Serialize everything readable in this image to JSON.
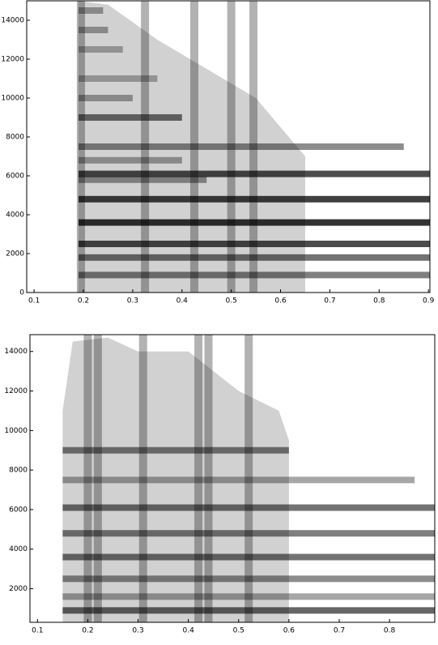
{
  "chart_data": [
    {
      "type": "spectrogram",
      "color": "#000000",
      "xlim": [
        0.085,
        0.903
      ],
      "xticks": [
        0.1,
        0.2,
        0.3,
        0.4,
        0.5,
        0.6,
        0.7,
        0.8,
        0.9
      ],
      "ylim": [
        0,
        15000
      ],
      "yticks": [
        0,
        2000,
        4000,
        6000,
        8000,
        10000,
        12000,
        14000
      ],
      "cloud": {
        "x": [
          0.19,
          0.25,
          0.35,
          0.45,
          0.55,
          0.6,
          0.65
        ],
        "top": [
          15000,
          14800,
          13000,
          11500,
          10000,
          8500,
          7000
        ]
      },
      "onsets": [
        0.195,
        0.325,
        0.425,
        0.5,
        0.545
      ],
      "harmonics": {
        "freq": [
          900,
          1800,
          2500,
          3600,
          4800,
          5800,
          6100,
          6800,
          7500,
          9000,
          10000,
          11000,
          12500,
          13500,
          14500
        ],
        "end": [
          0.903,
          0.903,
          0.903,
          0.903,
          0.903,
          0.45,
          0.903,
          0.4,
          0.85,
          0.4,
          0.3,
          0.35,
          0.28,
          0.25,
          0.24
        ],
        "intensity": [
          0.5,
          0.55,
          0.7,
          0.8,
          0.75,
          0.4,
          0.7,
          0.35,
          0.45,
          0.55,
          0.35,
          0.3,
          0.3,
          0.35,
          0.35
        ]
      }
    },
    {
      "type": "spectrogram",
      "color": "#000000",
      "xlim": [
        0.085,
        0.89
      ],
      "xticks": [
        0.1,
        0.2,
        0.3,
        0.4,
        0.5,
        0.6,
        0.7,
        0.8
      ],
      "ylim": [
        300,
        14850
      ],
      "yticks": [
        2000,
        4000,
        6000,
        8000,
        10000,
        12000,
        14000
      ],
      "cloud": {
        "x": [
          0.15,
          0.17,
          0.24,
          0.3,
          0.4,
          0.5,
          0.58,
          0.6
        ],
        "top": [
          11000,
          14500,
          14700,
          14000,
          14000,
          12000,
          11000,
          9500
        ]
      },
      "onsets": [
        0.2,
        0.22,
        0.31,
        0.42,
        0.44,
        0.52
      ],
      "harmonics": {
        "freq": [
          900,
          1600,
          2500,
          3600,
          4800,
          6100,
          7500,
          9000
        ],
        "end": [
          0.89,
          0.89,
          0.89,
          0.89,
          0.89,
          0.89,
          0.85,
          0.6
        ],
        "intensity": [
          0.6,
          0.35,
          0.45,
          0.55,
          0.5,
          0.55,
          0.35,
          0.5
        ]
      }
    }
  ]
}
